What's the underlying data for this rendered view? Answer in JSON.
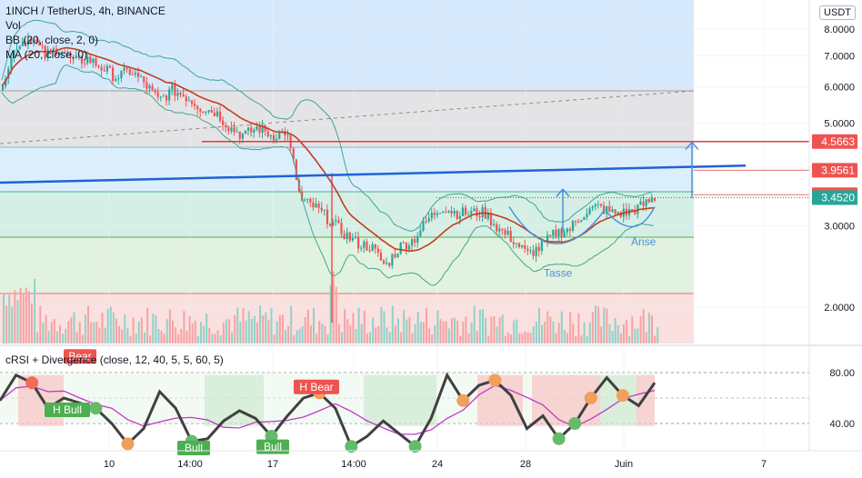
{
  "header": {
    "title": "1INCH / TetherUS, 4h, BINANCE",
    "indicators": [
      "Vol",
      "BB (20, close, 2, 0)",
      "MA (20, close, 0)"
    ]
  },
  "unit": "USDT",
  "oscillator": {
    "title": "cRSI + Divergence (close, 12, 40, 5, 5, 60, 5)",
    "levels": [
      "80.00",
      "40.00"
    ],
    "signals": [
      "Bear",
      "H Bull",
      "H Bear",
      "Bull",
      "Bull"
    ]
  },
  "annotations": {
    "cup": "Tasse",
    "handle": "Anse"
  },
  "colors": {
    "up": "#26a69a",
    "down": "#ef5350",
    "bb": "#42a58f",
    "ma": "#c53d1b",
    "trend": "#1e63d6",
    "resistance": "#e53935",
    "crsi": "#404040",
    "crsi_signal": "#c038c8"
  },
  "chart_data": {
    "type": "candlestick",
    "price_axis": {
      "ticks": [
        "8.0000",
        "7.0000",
        "6.0000",
        "5.0000",
        "4.0000",
        "3.0000",
        "2.0000"
      ],
      "range": [
        1.7,
        8.3
      ],
      "scale": "log"
    },
    "time_axis": {
      "ticks": [
        "10",
        "14:00",
        "17",
        "14:00",
        "24",
        "28",
        "Juin",
        "7"
      ]
    },
    "price_labels": [
      "4.5663",
      "3.9561",
      "3.5034",
      "3.4520"
    ],
    "last_price": "3.4520",
    "ohlc_path": [
      6.2,
      7.4,
      7.7,
      7.0,
      7.3,
      6.8,
      6.9,
      6.6,
      6.3,
      6.5,
      6.1,
      5.6,
      5.9,
      5.7,
      5.4,
      5.3,
      4.9,
      4.7,
      4.9,
      4.7,
      4.8,
      3.4,
      3.3,
      3.1,
      2.9,
      2.75,
      2.7,
      2.45,
      2.7,
      2.8,
      3.1,
      3.3,
      3.2,
      3.2,
      3.2,
      2.95,
      2.8,
      2.6,
      2.7,
      2.9,
      2.95,
      3.2,
      3.3,
      3.2,
      3.2,
      3.3,
      3.45
    ],
    "horizontal_levels": [
      4.5663,
      3.9561,
      3.5034,
      3.452,
      2.3
    ],
    "oscillator": {
      "range": [
        20,
        100
      ],
      "levels": [
        80,
        40
      ],
      "crsi": [
        58,
        78,
        72,
        52,
        60,
        56,
        52,
        40,
        24,
        36,
        65,
        52,
        26,
        28,
        42,
        50,
        44,
        30,
        46,
        60,
        64,
        52,
        22,
        30,
        42,
        32,
        22,
        44,
        78,
        58,
        70,
        74,
        62,
        36,
        46,
        28,
        40,
        60,
        76,
        62,
        54,
        72
      ]
    }
  }
}
